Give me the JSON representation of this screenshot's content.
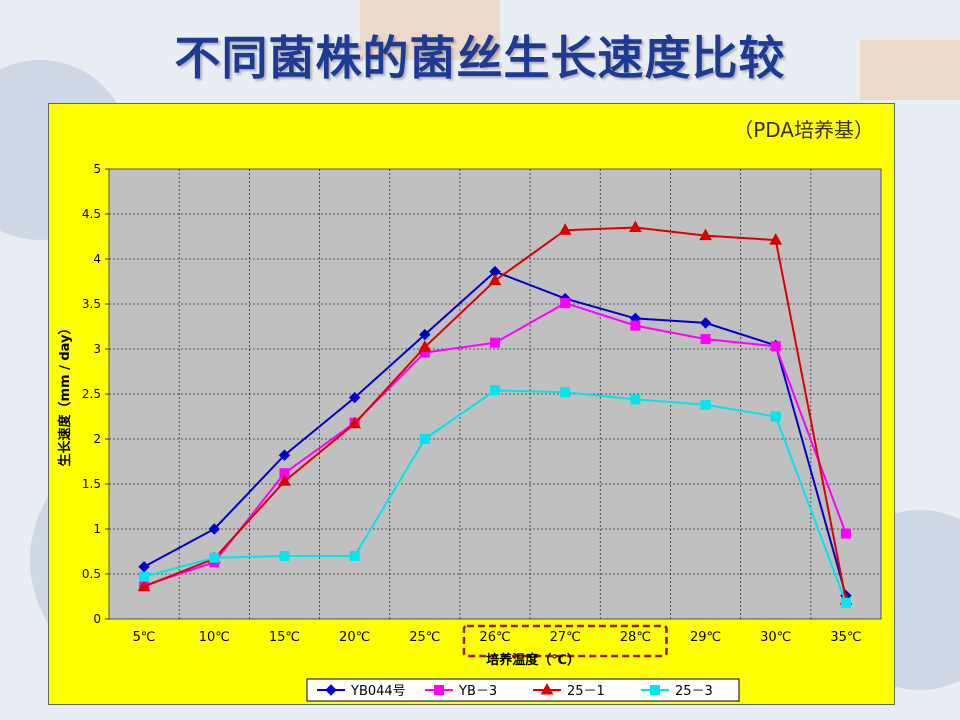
{
  "slide": {
    "title": "不同菌株的菌丝生长速度比较"
  },
  "chart_data": {
    "type": "line",
    "subtitle": "（PDA培养基）",
    "xlabel": "培养温度（℃）",
    "ylabel": "生长速度（mm / day）",
    "categories": [
      "5℃",
      "10℃",
      "15℃",
      "20℃",
      "25℃",
      "26℃",
      "27℃",
      "28℃",
      "29℃",
      "30℃",
      "35℃"
    ],
    "ylim": [
      0,
      5
    ],
    "yticks": [
      0,
      0.5,
      1,
      1.5,
      2,
      2.5,
      3,
      3.5,
      4,
      4.5,
      5
    ],
    "grid": true,
    "legend_position": "bottom",
    "highlight_categories": [
      "26℃",
      "27℃",
      "28℃"
    ],
    "series": [
      {
        "name": "YB044号",
        "color": "#0000cc",
        "marker": "diamond",
        "values": [
          0.58,
          1.0,
          1.82,
          2.46,
          3.16,
          3.86,
          3.56,
          3.34,
          3.29,
          3.04,
          0.26
        ]
      },
      {
        "name": "YB－3",
        "color": "#ff00ff",
        "marker": "square",
        "values": [
          0.37,
          0.63,
          1.62,
          2.18,
          2.96,
          3.07,
          3.51,
          3.26,
          3.11,
          3.03,
          0.95
        ]
      },
      {
        "name": "25－1",
        "color": "#dd0000",
        "marker": "triangle",
        "values": [
          0.36,
          0.67,
          1.53,
          2.17,
          3.02,
          3.76,
          4.32,
          4.35,
          4.26,
          4.21,
          0.21
        ]
      },
      {
        "name": "25－3",
        "color": "#00e5ee",
        "marker": "square",
        "values": [
          0.47,
          0.68,
          0.7,
          0.7,
          2.0,
          2.54,
          2.52,
          2.44,
          2.38,
          2.25,
          0.18
        ]
      }
    ]
  }
}
